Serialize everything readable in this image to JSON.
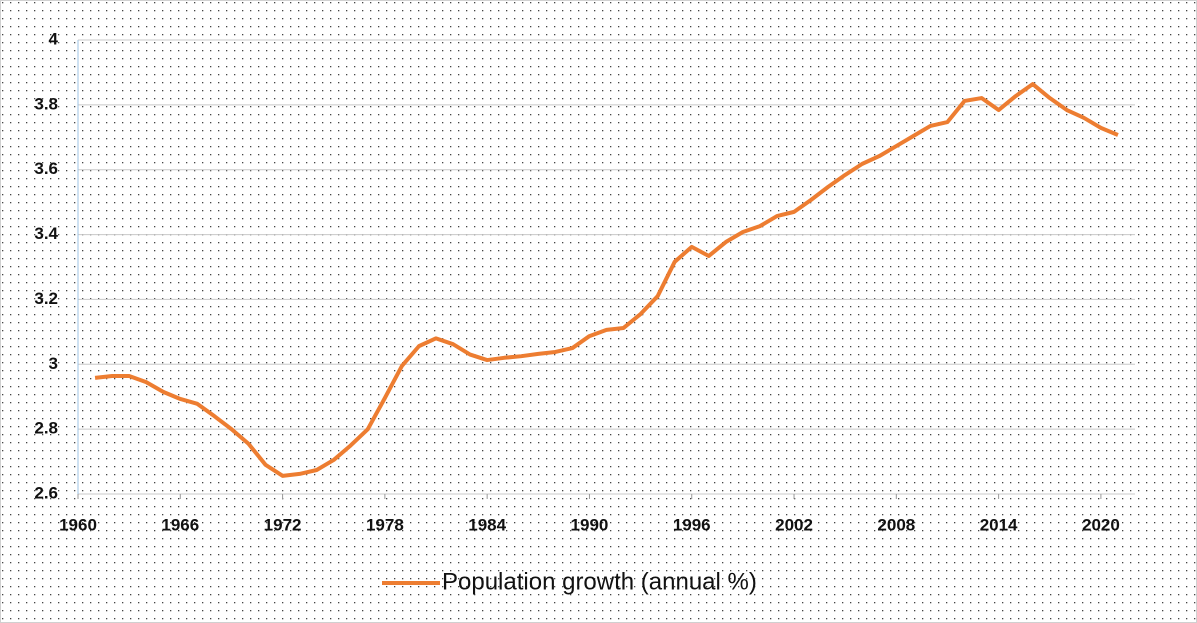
{
  "chart_data": {
    "type": "line",
    "x": [
      1961,
      1962,
      1963,
      1964,
      1965,
      1966,
      1967,
      1968,
      1969,
      1970,
      1971,
      1972,
      1973,
      1974,
      1975,
      1976,
      1977,
      1978,
      1979,
      1980,
      1981,
      1982,
      1983,
      1984,
      1985,
      1986,
      1987,
      1988,
      1989,
      1990,
      1991,
      1992,
      1993,
      1994,
      1995,
      1996,
      1997,
      1998,
      1999,
      2000,
      2001,
      2002,
      2003,
      2004,
      2005,
      2006,
      2007,
      2008,
      2009,
      2010,
      2011,
      2012,
      2013,
      2014,
      2015,
      2016,
      2017,
      2018,
      2019,
      2020,
      2021
    ],
    "series": [
      {
        "name": "Population growth (annual %)",
        "color": "#ed7d31",
        "values": [
          2.958,
          2.964,
          2.964,
          2.945,
          2.915,
          2.893,
          2.878,
          2.84,
          2.8,
          2.755,
          2.69,
          2.656,
          2.662,
          2.674,
          2.705,
          2.75,
          2.8,
          2.896,
          2.995,
          3.056,
          3.08,
          3.062,
          3.03,
          3.013,
          3.02,
          3.025,
          3.032,
          3.038,
          3.05,
          3.087,
          3.106,
          3.112,
          3.155,
          3.21,
          3.316,
          3.362,
          3.334,
          3.377,
          3.408,
          3.426,
          3.457,
          3.47,
          3.507,
          3.547,
          3.584,
          3.618,
          3.642,
          3.673,
          3.704,
          3.735,
          3.747,
          3.812,
          3.821,
          3.784,
          3.827,
          3.864,
          3.821,
          3.784,
          3.76,
          3.729,
          3.707
        ]
      }
    ],
    "xlim": [
      1960,
      2022
    ],
    "xticks": [
      1960,
      1966,
      1972,
      1978,
      1984,
      1990,
      1996,
      2002,
      2008,
      2014,
      2020
    ],
    "ylim": [
      2.6,
      4
    ],
    "yticks": [
      2.6,
      2.8,
      3,
      3.2,
      3.4,
      3.6,
      3.8,
      4
    ],
    "grid": true,
    "legend": "bottom"
  }
}
